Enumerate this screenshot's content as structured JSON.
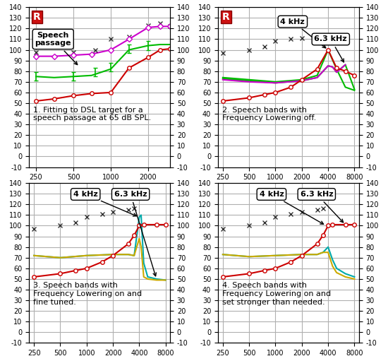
{
  "chart_data": [
    {
      "type": "line",
      "title": "1. Fitting to DSL target for a\nspeech passage at 65 dB SPL.",
      "log": "x",
      "grid": true,
      "badge": "R",
      "xlim": [
        220,
        3000
      ],
      "xticks": [
        250,
        500,
        1000,
        2000
      ],
      "ylim": [
        -10,
        140
      ],
      "yticks": [
        -10,
        0,
        10,
        20,
        30,
        40,
        50,
        60,
        70,
        80,
        90,
        100,
        110,
        120,
        130,
        140
      ],
      "y2lim": [
        -10,
        140
      ],
      "y2ticks": [
        -10,
        0,
        10,
        20,
        30,
        40,
        50,
        60,
        70,
        80,
        90,
        100,
        110,
        120,
        130,
        140
      ],
      "annotations": [
        {
          "text": "Speech\npassage",
          "x": 560,
          "y": 84
        }
      ],
      "series": [
        {
          "x": [
            250,
            350,
            500,
            700,
            1000,
            1400,
            2000,
            2500,
            3000
          ],
          "values": [
            75,
            74,
            75,
            76,
            82,
            100,
            104,
            105,
            105
          ],
          "color": "#00bb00",
          "line_style": "solid",
          "marker": "none"
        },
        {
          "x": [
            250,
            350,
            500,
            700,
            1000,
            1400,
            2000,
            2500,
            3000
          ],
          "values": [
            94,
            94,
            95,
            96,
            100,
            110,
            121,
            122,
            122
          ],
          "color": "#cc00cc",
          "line_style": "solid",
          "marker": "none"
        },
        {
          "x": [
            250,
            350,
            500,
            700,
            1000,
            1400,
            2000,
            2500,
            3000
          ],
          "values": [
            52,
            54,
            57,
            59,
            60,
            83,
            93,
            100,
            101
          ],
          "color": "#cc0000",
          "line_style": "solid",
          "marker": "none"
        },
        {
          "x": [
            250,
            500,
            750,
            1000,
            1400,
            2000,
            2500,
            3000
          ],
          "values": [
            98,
            98,
            100,
            110,
            112,
            123,
            125,
            122
          ],
          "color": "#333333",
          "line_style": "none",
          "marker": "x"
        },
        {
          "x": [
            250,
            350,
            500,
            700,
            1000,
            1400,
            2000,
            2500,
            3000
          ],
          "values": [
            94,
            94,
            95,
            96,
            100,
            110,
            121,
            122,
            122
          ],
          "color": "#cc00cc",
          "line_style": "none",
          "marker": "D"
        },
        {
          "x": [
            250,
            350,
            500,
            700,
            1000,
            1400,
            2000,
            2500,
            3000
          ],
          "values": [
            52,
            54,
            57,
            59,
            60,
            83,
            93,
            100,
            101
          ],
          "color": "#cc0000",
          "line_style": "none",
          "marker": "o"
        },
        {
          "x": [
            250,
            500,
            750,
            1000,
            1400,
            2000
          ],
          "values": [
            75,
            75,
            79,
            84,
            101,
            104
          ],
          "errors": [
            4,
            4,
            4,
            4,
            4,
            4
          ],
          "color": "#00bb00",
          "line_style": "none",
          "marker": "none"
        }
      ]
    },
    {
      "type": "line",
      "title": "2. Speech bands with\nFrequency Lowering off.",
      "log": "x",
      "grid": true,
      "badge": "R",
      "xlim": [
        220,
        9000
      ],
      "xticks": [
        250,
        500,
        1000,
        2000,
        4000,
        8000
      ],
      "ylim": [
        -10,
        140
      ],
      "yticks": [
        -10,
        0,
        10,
        20,
        30,
        40,
        50,
        60,
        70,
        80,
        90,
        100,
        110,
        120,
        130,
        140
      ],
      "y2lim": [
        -10,
        140
      ],
      "y2ticks": [
        -10,
        0,
        10,
        20,
        30,
        40,
        50,
        60,
        70,
        80,
        90,
        100,
        110,
        120,
        130,
        140
      ],
      "annotations": [
        {
          "text": "4 kHz",
          "x": 4000,
          "y": 100
        },
        {
          "text": "6.3 kHz",
          "x": 6300,
          "y": 86
        }
      ],
      "series": [
        {
          "x": [
            250,
            500,
            1000,
            2000,
            3000,
            4000,
            5000,
            6300,
            8000
          ],
          "values": [
            74,
            72,
            70,
            72,
            76,
            100,
            82,
            65,
            62
          ],
          "color": "#00bb00",
          "line_style": "solid",
          "marker": "none"
        },
        {
          "x": [
            250,
            500,
            1000,
            2000,
            3000,
            4000,
            4500,
            5000,
            6300,
            8000
          ],
          "values": [
            73,
            71,
            69,
            71,
            74,
            85,
            84,
            79,
            86,
            63
          ],
          "color": "#00bb00",
          "line_style": "solid",
          "marker": "none"
        },
        {
          "x": [
            250,
            500,
            1000,
            2000,
            3000,
            4000,
            4500,
            5000,
            6300
          ],
          "values": [
            72,
            70,
            69,
            71,
            74,
            85,
            84,
            79,
            86
          ],
          "color": "#cc00cc",
          "line_style": "solid",
          "marker": "none"
        },
        {
          "x": [
            250,
            500,
            750,
            1000,
            1500,
            2000,
            3000,
            4000,
            5000,
            6300,
            8000
          ],
          "values": [
            52,
            55,
            58,
            60,
            65,
            72,
            82,
            100,
            83,
            80,
            76
          ],
          "color": "#cc0000",
          "line_style": "solid",
          "marker": "none"
        },
        {
          "x": [
            250,
            500,
            750,
            1000,
            1500,
            2000,
            3000,
            4000,
            5000,
            6300,
            8000
          ],
          "values": [
            52,
            55,
            58,
            60,
            65,
            72,
            82,
            100,
            83,
            80,
            76
          ],
          "color": "#cc0000",
          "line_style": "none",
          "marker": "o"
        },
        {
          "x": [
            250,
            500,
            750,
            1000,
            1500,
            2000,
            3000
          ],
          "values": [
            97,
            100,
            103,
            108,
            110,
            111,
            113
          ],
          "color": "#333333",
          "line_style": "none",
          "marker": "x"
        }
      ]
    },
    {
      "type": "line",
      "title": "3. Speech bands with\nFrequency Lowering on and\nfine tuned.",
      "log": "x",
      "grid": true,
      "xlim": [
        220,
        9000
      ],
      "xticks": [
        250,
        500,
        1000,
        2000,
        4000,
        8000
      ],
      "ylim": [
        -10,
        140
      ],
      "yticks": [
        -10,
        0,
        10,
        20,
        30,
        40,
        50,
        60,
        70,
        80,
        90,
        100,
        110,
        120,
        130,
        140
      ],
      "y2lim": [
        -10,
        140
      ],
      "y2ticks": [
        -10,
        0,
        10,
        20,
        30,
        40,
        50,
        60,
        70,
        80,
        90,
        100,
        110,
        120,
        130,
        140
      ],
      "annotations": [
        {
          "text": "4 kHz",
          "x": 4000,
          "y": 108
        },
        {
          "text": "6.3 kHz",
          "x": 6300,
          "y": 50
        }
      ],
      "series": [
        {
          "x": [
            250,
            500,
            1000,
            2000,
            3000,
            3500,
            4000,
            4200,
            4500,
            5000,
            6300,
            8000
          ],
          "values": [
            72,
            70,
            72,
            73,
            73,
            72,
            108,
            110,
            65,
            52,
            50,
            49
          ],
          "color": "#00aaaa",
          "line_style": "solid",
          "marker": "none"
        },
        {
          "x": [
            250,
            500,
            1000,
            2000,
            3000,
            3500,
            4000,
            4200,
            4500,
            5000,
            6300,
            8000
          ],
          "values": [
            72,
            70,
            72,
            73,
            73,
            72,
            88,
            80,
            52,
            50,
            49,
            49
          ],
          "color": "#ccaa00",
          "line_style": "solid",
          "marker": "none"
        },
        {
          "x": [
            250,
            500,
            750,
            1000,
            1500,
            2000,
            3000,
            3500,
            4000,
            4500,
            6300,
            8000
          ],
          "values": [
            52,
            55,
            58,
            60,
            66,
            72,
            83,
            91,
            100,
            101,
            101,
            101
          ],
          "color": "#cc0000",
          "line_style": "solid",
          "marker": "none"
        },
        {
          "x": [
            250,
            500,
            750,
            1000,
            1500,
            2000,
            3000,
            3500,
            4000,
            4500,
            6300,
            8000
          ],
          "values": [
            52,
            55,
            58,
            60,
            66,
            72,
            83,
            91,
            100,
            101,
            101,
            101
          ],
          "color": "#cc0000",
          "line_style": "none",
          "marker": "o"
        },
        {
          "x": [
            250,
            500,
            750,
            1000,
            1500,
            2000,
            3000,
            3500
          ],
          "values": [
            97,
            100,
            103,
            108,
            111,
            113,
            115,
            116
          ],
          "color": "#333333",
          "line_style": "none",
          "marker": "x"
        }
      ]
    },
    {
      "type": "line",
      "title": "4. Speech bands with\nFrequency Lowering on and\nset stronger than needed.",
      "log": "x",
      "grid": true,
      "xlim": [
        220,
        9000
      ],
      "xticks": [
        250,
        500,
        1000,
        2000,
        4000,
        8000
      ],
      "ylim": [
        -10,
        140
      ],
      "yticks": [
        -10,
        0,
        10,
        20,
        30,
        40,
        50,
        60,
        70,
        80,
        90,
        100,
        110,
        120,
        130,
        140
      ],
      "y2lim": [
        -10,
        140
      ],
      "y2ticks": [
        -10,
        0,
        10,
        20,
        30,
        40,
        50,
        60,
        70,
        80,
        90,
        100,
        110,
        120,
        130,
        140
      ],
      "annotations": [
        {
          "text": "4 kHz",
          "x": 3800,
          "y": 100
        },
        {
          "text": "6.3 kHz",
          "x": 6300,
          "y": 101
        }
      ],
      "series": [
        {
          "x": [
            250,
            500,
            1000,
            2000,
            3000,
            3500,
            4000,
            4500,
            5000,
            6300,
            8000
          ],
          "values": [
            73,
            71,
            72,
            73,
            73,
            75,
            80,
            68,
            60,
            55,
            52
          ],
          "color": "#00aaaa",
          "line_style": "solid",
          "marker": "none"
        },
        {
          "x": [
            250,
            500,
            1000,
            2000,
            3000,
            3500,
            4000,
            4500,
            5000,
            6300,
            8000
          ],
          "values": [
            73,
            71,
            72,
            73,
            73,
            75,
            75,
            62,
            56,
            52,
            50
          ],
          "color": "#ccaa00",
          "line_style": "solid",
          "marker": "none"
        },
        {
          "x": [
            250,
            500,
            750,
            1000,
            1500,
            2000,
            3000,
            3500,
            4000,
            4500,
            6300,
            8000
          ],
          "values": [
            52,
            55,
            58,
            60,
            66,
            72,
            83,
            91,
            100,
            101,
            101,
            101
          ],
          "color": "#cc0000",
          "line_style": "solid",
          "marker": "none"
        },
        {
          "x": [
            250,
            500,
            750,
            1000,
            1500,
            2000,
            3000,
            3500,
            4000,
            4500,
            6300,
            8000
          ],
          "values": [
            52,
            55,
            58,
            60,
            66,
            72,
            83,
            91,
            100,
            101,
            101,
            101
          ],
          "color": "#cc0000",
          "line_style": "none",
          "marker": "o"
        },
        {
          "x": [
            250,
            500,
            750,
            1000,
            1500,
            2000,
            3000,
            3500
          ],
          "values": [
            97,
            100,
            103,
            108,
            111,
            113,
            115,
            116
          ],
          "color": "#333333",
          "line_style": "none",
          "marker": "x"
        }
      ]
    }
  ]
}
